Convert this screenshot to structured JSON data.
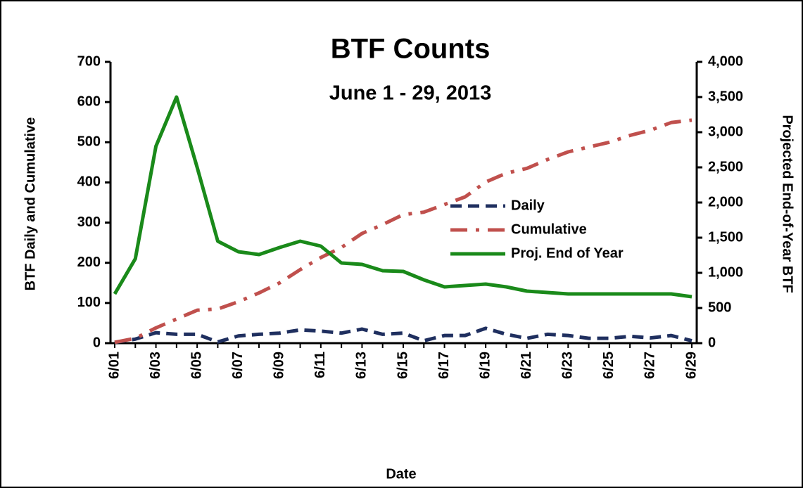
{
  "chart_data": {
    "type": "line",
    "title": "BTF Counts",
    "subtitle": "June 1 - 29, 2013",
    "x_label": "Date",
    "y_label": "BTF Daily and Cumulative",
    "y2_label": "Projected End-of-Year  BTF",
    "categories": [
      "6/01",
      null,
      "6/03",
      null,
      "6/05",
      null,
      "6/07",
      null,
      "6/09",
      null,
      "6/11",
      null,
      "6/13",
      null,
      "6/15",
      null,
      "6/17",
      null,
      "6/19",
      null,
      "6/21",
      null,
      "6/23",
      null,
      "6/25",
      null,
      "6/27",
      null,
      "6/29"
    ],
    "ylim": [
      0,
      700
    ],
    "yticks": [
      0,
      100,
      200,
      300,
      400,
      500,
      600,
      700
    ],
    "y2lim": [
      0,
      4000
    ],
    "y2ticks": [
      0,
      500,
      {
        "value": 1000,
        "label": "1,000"
      },
      {
        "value": 1500,
        "label": "1,500"
      },
      {
        "value": 2000,
        "label": "2,000"
      },
      {
        "value": 2500,
        "label": "2,500"
      },
      {
        "value": 3000,
        "label": "3,000"
      },
      {
        "value": 3500,
        "label": "3,500"
      },
      {
        "value": 4000,
        "label": "4,000"
      }
    ],
    "series": [
      {
        "name": "Daily",
        "color": "#1f2f5f",
        "style": "dashed",
        "values": [
          2,
          10,
          26,
          22,
          22,
          3,
          18,
          22,
          25,
          33,
          30,
          25,
          35,
          22,
          25,
          6,
          19,
          19,
          37,
          22,
          12,
          22,
          19,
          12,
          12,
          17,
          13,
          19,
          6
        ]
      },
      {
        "name": "Cumulative",
        "color": "#c0504d",
        "style": "dashdot",
        "values": [
          2,
          12,
          38,
          60,
          82,
          85,
          103,
          125,
          150,
          183,
          213,
          238,
          273,
          295,
          320,
          326,
          345,
          364,
          401,
          423,
          435,
          457,
          476,
          488,
          500,
          517,
          530,
          549,
          555
        ]
      },
      {
        "name": "Proj. End of Year",
        "color": "#1a8a1a",
        "style": "solid",
        "axis": "y2",
        "values": [
          700,
          1200,
          2800,
          3500,
          2500,
          1450,
          1300,
          1260,
          1360,
          1450,
          1380,
          1140,
          1120,
          1030,
          1020,
          900,
          800,
          820,
          840,
          800,
          740,
          720,
          700,
          700,
          700,
          700,
          700,
          700,
          660
        ]
      }
    ]
  }
}
